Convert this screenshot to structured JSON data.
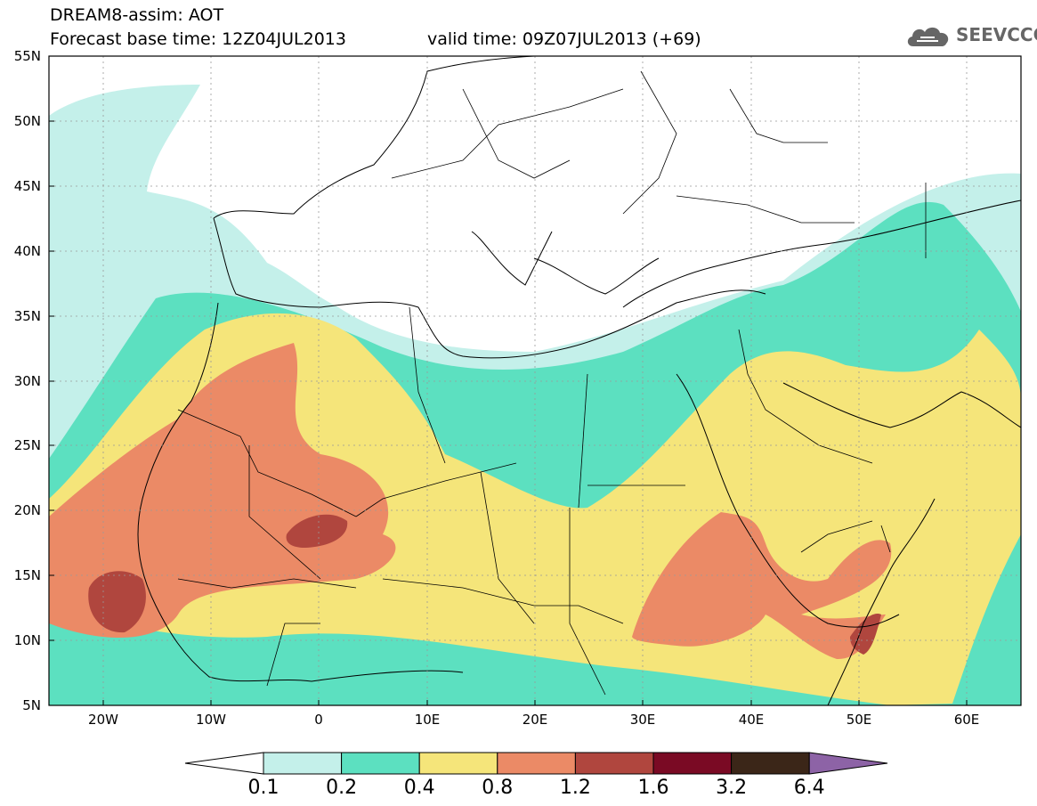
{
  "header": {
    "line1": "DREAM8-assim: AOT",
    "line2": "Forecast base time: 12Z04JUL2013",
    "line3": "valid time: 09Z07JUL2013 (+69)",
    "logo_text": "SEEVCCC",
    "logo_icon": "cloud-icon"
  },
  "map": {
    "lon_range": [
      -25,
      65
    ],
    "lat_range": [
      5,
      55
    ],
    "lat_labels": [
      "55N",
      "50N",
      "45N",
      "40N",
      "35N",
      "30N",
      "25N",
      "20N",
      "15N",
      "10N",
      "5N"
    ],
    "lon_labels": [
      "20W",
      "10W",
      "0",
      "10E",
      "20E",
      "30E",
      "40E",
      "50E",
      "60E"
    ],
    "grid": true
  },
  "colorbar": {
    "labels": [
      "0.1",
      "0.2",
      "0.4",
      "0.8",
      "1.2",
      "1.6",
      "3.2",
      "6.4"
    ],
    "colors": [
      "#c4f0ea",
      "#5ce0c0",
      "#f5e57a",
      "#eb8a66",
      "#b0463e",
      "#7a0a24",
      "#3b2618",
      "#8d63a6"
    ],
    "under_color": "#ffffff"
  }
}
